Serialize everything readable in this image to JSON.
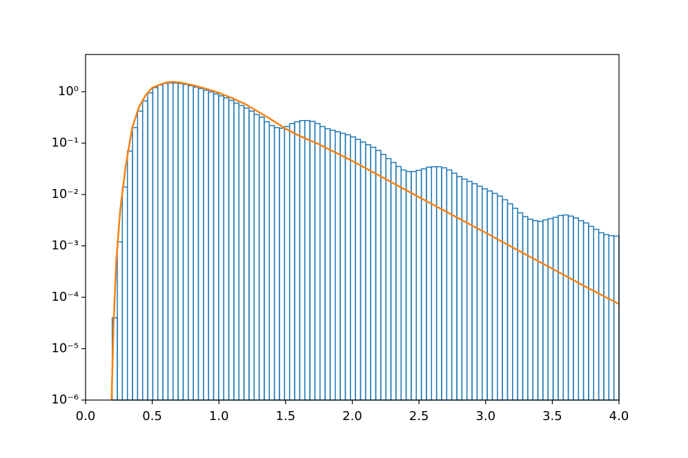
{
  "chart_data": {
    "type": "histogram",
    "color": "#1f77b4",
    "log_y": true,
    "bins": [
      0.2,
      0.238,
      0.276,
      0.314,
      0.352,
      0.39,
      0.428,
      0.466,
      0.504,
      0.542,
      0.58,
      0.618,
      0.656,
      0.694,
      0.732,
      0.77,
      0.808,
      0.846,
      0.884,
      0.922,
      0.96,
      0.998,
      1.036,
      1.074,
      1.112,
      1.15,
      1.188,
      1.226,
      1.264,
      1.302,
      1.34,
      1.378,
      1.416,
      1.454,
      1.492,
      1.53,
      1.568,
      1.606,
      1.644,
      1.682,
      1.72,
      1.758,
      1.796,
      1.834,
      1.872,
      1.91,
      1.948,
      1.986,
      2.024,
      2.062,
      2.1,
      2.138,
      2.176,
      2.214,
      2.252,
      2.29,
      2.328,
      2.366,
      2.404,
      2.442,
      2.48,
      2.518,
      2.556,
      2.594,
      2.632,
      2.67,
      2.708,
      2.746,
      2.784,
      2.822,
      2.86,
      2.898,
      2.936,
      2.974,
      3.012,
      3.05,
      3.088,
      3.126,
      3.164,
      3.202,
      3.24,
      3.278,
      3.316,
      3.354,
      3.392,
      3.43,
      3.468,
      3.506,
      3.544,
      3.582,
      3.62,
      3.658,
      3.696,
      3.734,
      3.772,
      3.81,
      3.848,
      3.886,
      3.924,
      3.962,
      4.0
    ],
    "values": [
      4e-05,
      0.0012,
      0.014,
      0.07,
      0.2,
      0.42,
      0.66,
      0.95,
      1.2,
      1.35,
      1.45,
      1.48,
      1.47,
      1.44,
      1.38,
      1.31,
      1.23,
      1.15,
      1.07,
      0.99,
      0.91,
      0.83,
      0.76,
      0.68,
      0.6,
      0.54,
      0.48,
      0.42,
      0.36,
      0.32,
      0.26,
      0.22,
      0.2,
      0.195,
      0.21,
      0.24,
      0.26,
      0.275,
      0.275,
      0.265,
      0.24,
      0.21,
      0.19,
      0.178,
      0.166,
      0.155,
      0.145,
      0.132,
      0.118,
      0.105,
      0.093,
      0.083,
      0.072,
      0.06,
      0.05,
      0.042,
      0.035,
      0.03,
      0.028,
      0.028,
      0.0295,
      0.0315,
      0.034,
      0.0347,
      0.0347,
      0.033,
      0.03,
      0.026,
      0.0224,
      0.02,
      0.018,
      0.0162,
      0.0145,
      0.0129,
      0.0117,
      0.0105,
      0.0093,
      0.0079,
      0.0066,
      0.0054,
      0.0044,
      0.0037,
      0.0033,
      0.0031,
      0.003,
      0.0032,
      0.0034,
      0.0036,
      0.0039,
      0.004,
      0.0038,
      0.0035,
      0.0031,
      0.0028,
      0.0024,
      0.0021,
      0.0018,
      0.00166,
      0.00158,
      0.00155
    ],
    "overlay": {
      "type": "line",
      "color": "#ff7f0e",
      "x": [
        0.195,
        0.21,
        0.23,
        0.26,
        0.3,
        0.35,
        0.4,
        0.45,
        0.5,
        0.6,
        0.65,
        0.7,
        0.8,
        0.9,
        1.0,
        1.1,
        1.2,
        1.3,
        1.4,
        1.5,
        1.6,
        1.75,
        2.0,
        2.25,
        2.5,
        2.75,
        3.0,
        3.25,
        3.5,
        3.75,
        4.0
      ],
      "values": [
        1e-06,
        3e-05,
        0.0005,
        0.005,
        0.035,
        0.2,
        0.5,
        0.85,
        1.2,
        1.5,
        1.55,
        1.52,
        1.35,
        1.15,
        0.95,
        0.75,
        0.57,
        0.4,
        0.28,
        0.19,
        0.14,
        0.095,
        0.045,
        0.02,
        0.0089,
        0.004,
        0.0018,
        0.0008,
        0.00036,
        0.00016,
        7.4e-05
      ]
    },
    "xlim": [
      0,
      4
    ],
    "ylim": [
      1e-06,
      5.3
    ],
    "xticks": [
      {
        "value": 0,
        "label": "0.0"
      },
      0.5,
      {
        "value": 1,
        "label": "1.0"
      },
      1.5,
      {
        "value": 2,
        "label": "2.0"
      },
      2.5,
      {
        "value": 3,
        "label": "3.0"
      },
      3.5,
      {
        "value": 4,
        "label": "4.0"
      }
    ],
    "yticks": [
      {
        "value": 1e-06,
        "label": "10⁻⁶"
      },
      {
        "value": 1e-05,
        "label": "10⁻⁵"
      },
      {
        "value": 0.0001,
        "label": "10⁻⁴"
      },
      {
        "value": 0.001,
        "label": "10⁻³"
      },
      {
        "value": 0.01,
        "label": "10⁻²"
      },
      {
        "value": 0.1,
        "label": "10⁻¹"
      },
      {
        "value": 1,
        "label": "10⁰"
      }
    ]
  }
}
